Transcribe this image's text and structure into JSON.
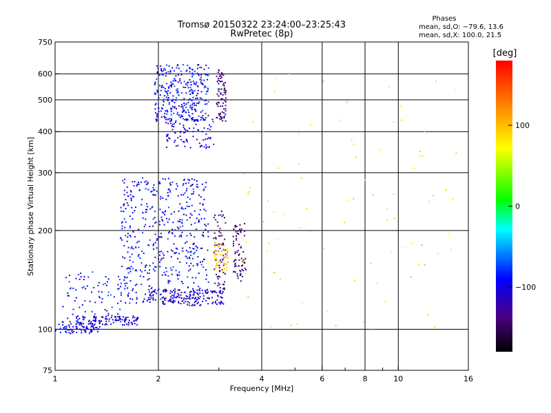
{
  "chart_data": {
    "type": "scatter",
    "title": "Tromsø 20150322 23:24:00–23:25:43",
    "subtitle": "RwPretec (8p)",
    "xlabel": "Frequency [MHz]",
    "ylabel": "Stationary phase Virtual Height [km]",
    "x_scale": "log",
    "y_scale": "log",
    "xlim": [
      1,
      16
    ],
    "ylim": [
      75,
      750
    ],
    "x_ticks": [
      1,
      2,
      4,
      6,
      8,
      10,
      16
    ],
    "x_tick_labels": [
      "1",
      "2",
      "4",
      "6",
      "8",
      "10",
      "16"
    ],
    "x_minor_ticks": [
      3,
      5,
      7,
      9
    ],
    "y_ticks": [
      75,
      100,
      200,
      300,
      400,
      500,
      600,
      750
    ],
    "y_tick_labels": [
      "75",
      "100",
      "200",
      "300",
      "400",
      "500",
      "600",
      "750"
    ],
    "grid": true,
    "stats": {
      "heading": "Phases",
      "line1": "mean, sd,O: −79.6, 13.6",
      "line2": "mean, sd,X: 100.0, 21.5"
    },
    "colorbar": {
      "label": "[deg]",
      "ticks": [
        100,
        0,
        -100
      ],
      "tick_labels": [
        "100",
        "0",
        "−100"
      ],
      "range": [
        -180,
        180
      ]
    },
    "clusters": [
      {
        "name": "low-trace",
        "f": [
          1.0,
          1.35
        ],
        "h": [
          97,
          104
        ],
        "phase": -100,
        "n": 70
      },
      {
        "name": "low-trace-2",
        "f": [
          1.15,
          1.75
        ],
        "h": [
          103,
          110
        ],
        "phase": -105,
        "n": 110
      },
      {
        "name": "diag-rise",
        "f": [
          1.05,
          1.6
        ],
        "h": [
          105,
          150
        ],
        "phase": -90,
        "n": 90
      },
      {
        "name": "f-region-main",
        "f": [
          1.55,
          2.8
        ],
        "h": [
          120,
          290
        ],
        "phase": -95,
        "n": 520
      },
      {
        "name": "lower-envelope",
        "f": [
          1.8,
          3.1
        ],
        "h": [
          118,
          132
        ],
        "phase": -110,
        "n": 160
      },
      {
        "name": "x-mode-purple-1",
        "f": [
          2.9,
          3.15
        ],
        "h": [
          130,
          230
        ],
        "phase": -140,
        "n": 70
      },
      {
        "name": "x-mode-purple-2",
        "f": [
          3.3,
          3.6
        ],
        "h": [
          140,
          210
        ],
        "phase": -145,
        "n": 70
      },
      {
        "name": "yellow-patch",
        "f": [
          2.9,
          3.2
        ],
        "h": [
          150,
          185
        ],
        "phase": 95,
        "n": 50
      },
      {
        "name": "upper-cluster",
        "f": [
          1.95,
          2.8
        ],
        "h": [
          430,
          640
        ],
        "phase": -92,
        "n": 320
      },
      {
        "name": "upper-purple",
        "f": [
          2.95,
          3.15
        ],
        "h": [
          430,
          620
        ],
        "phase": -140,
        "n": 80
      },
      {
        "name": "upper-tail",
        "f": [
          2.1,
          2.9
        ],
        "h": [
          355,
          440
        ],
        "phase": -105,
        "n": 90
      },
      {
        "name": "scatter-sparse",
        "f": [
          3.5,
          15.0
        ],
        "h": [
          95,
          650
        ],
        "phase": 60,
        "n": 90
      }
    ]
  }
}
